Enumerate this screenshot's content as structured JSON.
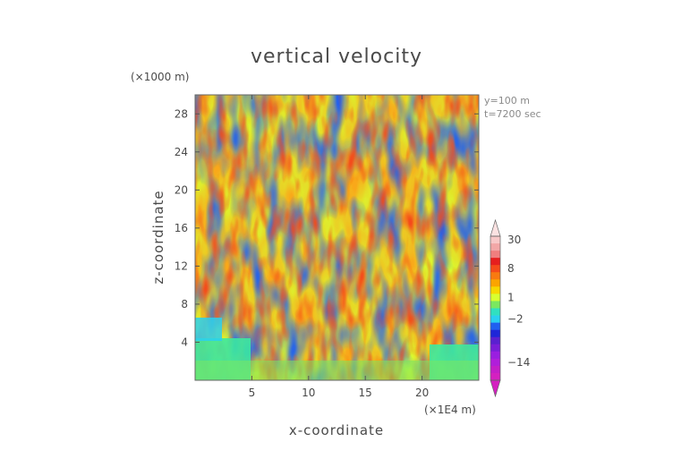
{
  "chart_data": {
    "type": "heatmap",
    "title": "vertical velocity",
    "xlabel": "x-coordinate",
    "ylabel": "z-coordinate",
    "x_unit_label": "(×1E4 m)",
    "y_unit_label": "(×1000 m)",
    "annotations": [
      "y=100  m",
      "t=7200 sec"
    ],
    "xlim": [
      0,
      25
    ],
    "ylim": [
      0,
      30
    ],
    "x_ticks": [
      5,
      10,
      15,
      20
    ],
    "y_ticks": [
      4,
      8,
      12,
      16,
      20,
      24,
      28
    ],
    "colorbar": {
      "labels": [
        {
          "value": 30,
          "text": "30"
        },
        {
          "value": 8,
          "text": "8"
        },
        {
          "value": 1,
          "text": "1"
        },
        {
          "value": -2,
          "text": "−2"
        },
        {
          "value": -14,
          "text": "−14"
        }
      ],
      "levels": [
        {
          "value": 30,
          "color": "#f7c8c8"
        },
        {
          "value": 20,
          "color": "#f2a7a7"
        },
        {
          "value": 14,
          "color": "#f07e7e"
        },
        {
          "value": 10,
          "color": "#e61e1e"
        },
        {
          "value": 8,
          "color": "#f54a1a"
        },
        {
          "value": 6,
          "color": "#f87a10"
        },
        {
          "value": 4,
          "color": "#fba400"
        },
        {
          "value": 2,
          "color": "#f7d800"
        },
        {
          "value": 1,
          "color": "#d8ff30"
        },
        {
          "value": 0,
          "color": "#7ae860"
        },
        {
          "value": -1,
          "color": "#30e0c0"
        },
        {
          "value": -2,
          "color": "#2ad0f0"
        },
        {
          "value": -4,
          "color": "#2060f0"
        },
        {
          "value": -6,
          "color": "#1e26d8"
        },
        {
          "value": -8,
          "color": "#5a20d0"
        },
        {
          "value": -10,
          "color": "#7a1ed8"
        },
        {
          "value": -12,
          "color": "#9a1ee0"
        },
        {
          "value": -14,
          "color": "#b01eda"
        },
        {
          "value": -20,
          "color": "#c41ec8"
        },
        {
          "value": -30,
          "color": "#d420c0"
        }
      ]
    }
  }
}
